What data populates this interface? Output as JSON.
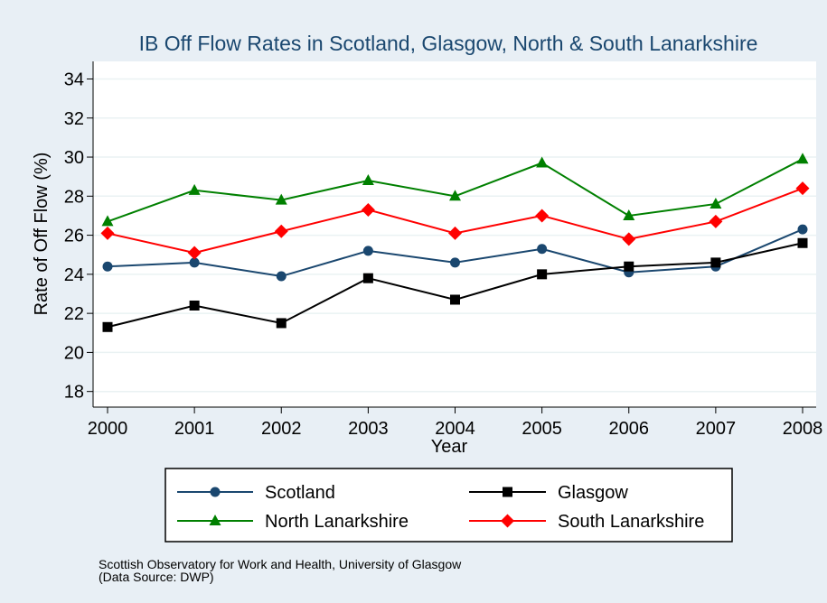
{
  "chart_data": {
    "type": "line",
    "title": "IB Off Flow Rates in Scotland, Glasgow, North & South Lanarkshire",
    "xlabel": "Year",
    "ylabel": "Rate of Off Flow (%)",
    "x": [
      2000,
      2001,
      2002,
      2003,
      2004,
      2005,
      2006,
      2007,
      2008
    ],
    "x_tick_labels": [
      "2000",
      "2001",
      "2002",
      "2003",
      "2004",
      "2005",
      "2006",
      "2007",
      "2008"
    ],
    "ylim": [
      17.2,
      34.9
    ],
    "y_ticks": [
      18,
      20,
      22,
      24,
      26,
      28,
      30,
      32,
      34
    ],
    "y_tick_labels": [
      "18",
      "20",
      "22",
      "24",
      "26",
      "28",
      "30",
      "32",
      "34"
    ],
    "grid": true,
    "legend_position": "bottom",
    "series": [
      {
        "name": "Scotland",
        "color": "#1a476f",
        "marker": "circle",
        "values": [
          24.4,
          24.6,
          23.9,
          25.2,
          24.6,
          25.3,
          24.1,
          24.4,
          26.3
        ]
      },
      {
        "name": "Glasgow",
        "color": "#000000",
        "marker": "square",
        "values": [
          21.3,
          22.4,
          21.5,
          23.8,
          22.7,
          24.0,
          24.4,
          24.6,
          25.6
        ]
      },
      {
        "name": "North Lanarkshire",
        "color": "#008000",
        "marker": "triangle",
        "values": [
          26.7,
          28.3,
          27.8,
          28.8,
          28.0,
          29.7,
          27.0,
          27.6,
          29.9
        ]
      },
      {
        "name": "South Lanarkshire",
        "color": "#ff0000",
        "marker": "diamond",
        "values": [
          26.1,
          25.1,
          26.2,
          27.3,
          26.1,
          27.0,
          25.8,
          26.7,
          28.4
        ]
      }
    ]
  },
  "note": {
    "line1": "Scottish Observatory for Work and Health, University of Glasgow",
    "line2": "(Data Source: DWP)"
  }
}
